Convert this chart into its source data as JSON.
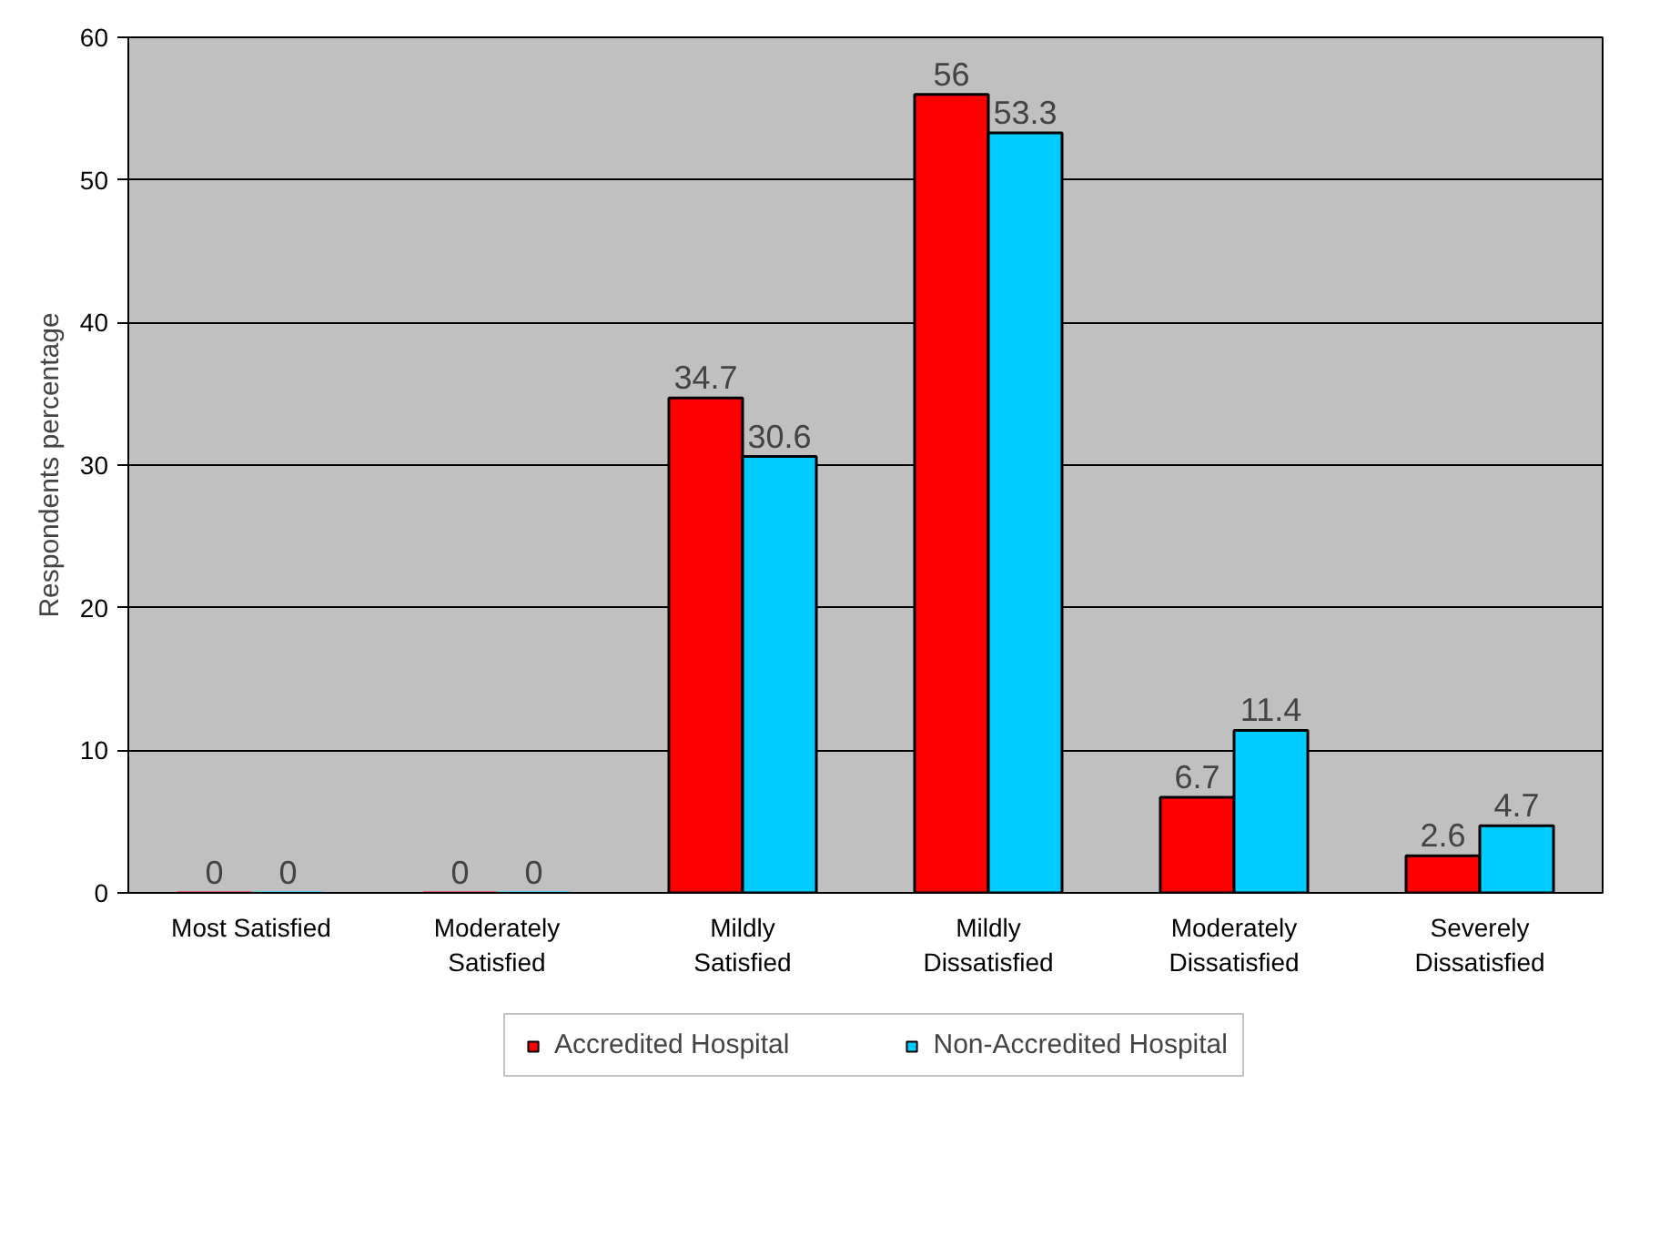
{
  "chart_data": {
    "type": "bar",
    "ylabel": "Respondents percentage",
    "categories": [
      "Most Satisfied",
      "Moderately Satisfied",
      "Mildly Satisfied",
      "Mildly Dissatisfied",
      "Moderately Dissatisfied",
      "Severely Dissatisfied"
    ],
    "series": [
      {
        "name": "Accredited Hospital",
        "color": "#ff0000",
        "values": [
          0,
          0,
          34.7,
          56,
          6.7,
          2.6
        ]
      },
      {
        "name": "Non-Accredited Hospital",
        "color": "#00ccff",
        "values": [
          0,
          0,
          30.6,
          53.3,
          11.4,
          4.7
        ]
      }
    ],
    "ylim": [
      0,
      60
    ],
    "yticks": [
      0,
      10,
      20,
      30,
      40,
      50,
      60
    ],
    "grid": "y",
    "legend": "bottom",
    "data_labels": true
  }
}
